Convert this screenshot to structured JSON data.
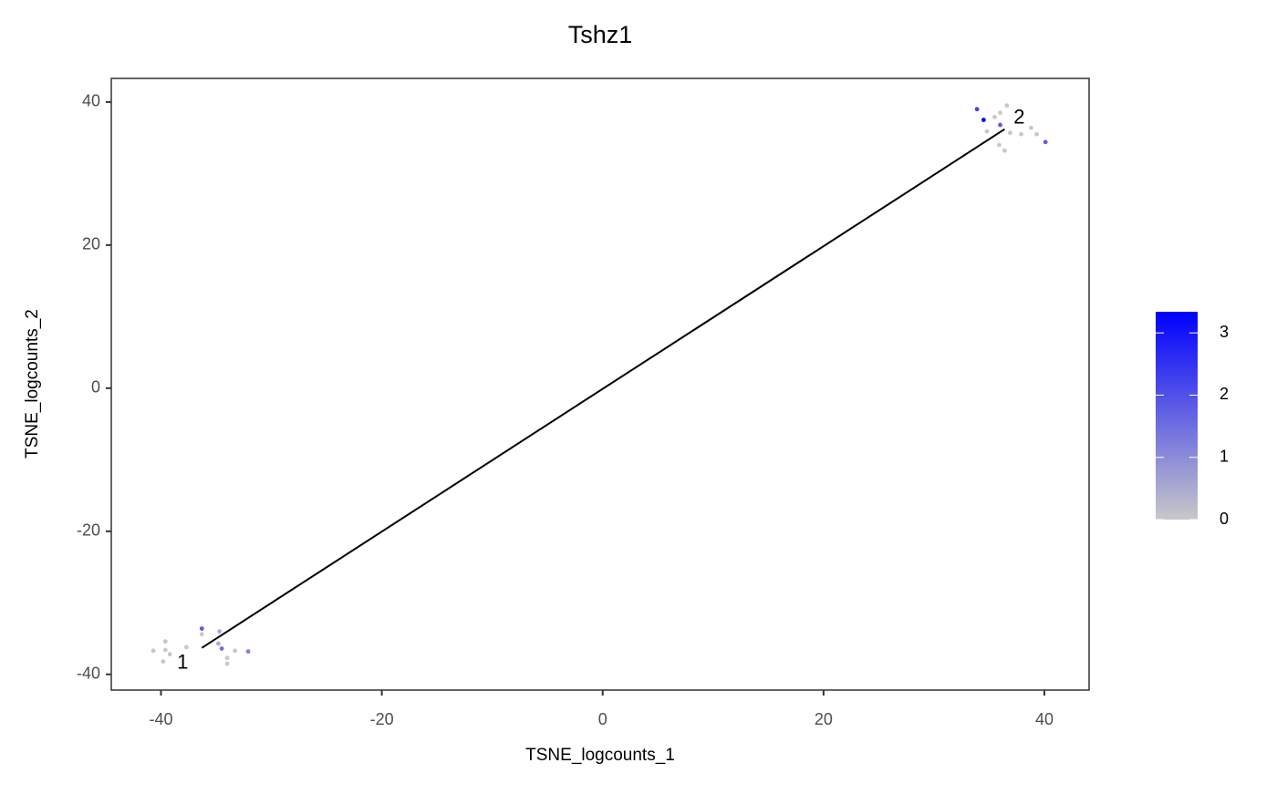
{
  "chart_data": {
    "type": "scatter",
    "title": "Tshz1",
    "x_label": "TSNE_logcounts_1",
    "y_label": "TSNE_logcounts_2",
    "x": [
      -40.7,
      -39.6,
      -39.6,
      -39.2,
      -39.8,
      -37.7,
      -36.3,
      -36.3,
      -34.7,
      -34.8,
      -34.5,
      -34.0,
      -34.0,
      -33.3,
      -32.1,
      33.9,
      34.5,
      36.0,
      36.6,
      35.5,
      36.0,
      34.8,
      36.9,
      37.9,
      38.8,
      39.3,
      35.9,
      36.4,
      40.1
    ],
    "y": [
      -36.7,
      -35.4,
      -36.6,
      -37.2,
      -38.2,
      -36.2,
      -33.6,
      -34.4,
      -34.0,
      -35.7,
      -36.4,
      -37.7,
      -38.5,
      -36.7,
      -36.8,
      39.0,
      37.5,
      38.5,
      39.5,
      37.9,
      36.8,
      35.9,
      35.7,
      35.5,
      36.4,
      35.5,
      34.0,
      33.2,
      34.4
    ],
    "values": [
      0,
      0,
      0,
      0,
      0,
      0,
      1.8,
      0,
      0.5,
      0.5,
      1.5,
      0,
      0,
      0,
      1.2,
      2.2,
      3.3,
      0,
      0,
      0,
      1.8,
      0,
      0,
      0,
      0,
      0,
      0,
      0,
      1.8
    ],
    "trajectory": {
      "x": [
        -36.3,
        36.4
      ],
      "y": [
        -36.3,
        36.2
      ],
      "labels": [
        "1",
        "2"
      ]
    },
    "xlim": [
      -44.5,
      44.05
    ],
    "ylim": [
      -42.2,
      43.3
    ],
    "xticks": [
      -40,
      -20,
      0,
      20,
      40
    ],
    "yticks": [
      -40,
      -20,
      0,
      20,
      40
    ],
    "colorlim": [
      0,
      3.34
    ],
    "colorticks": [
      0,
      1,
      2,
      3
    ],
    "low_color": "#c8c8c8",
    "high_color": "#0000ff"
  }
}
